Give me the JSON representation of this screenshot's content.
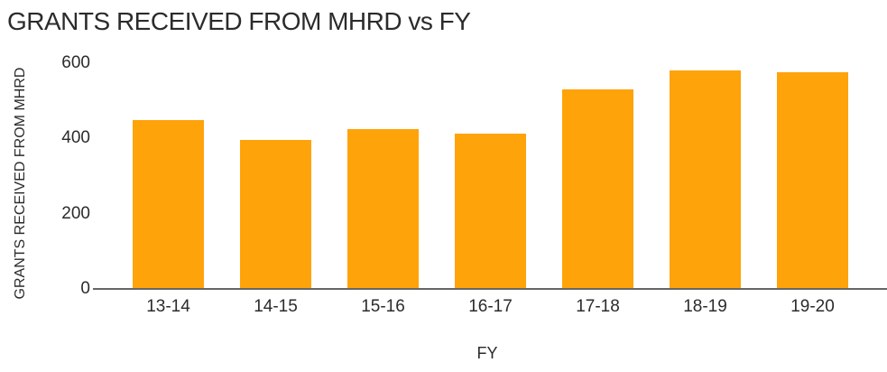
{
  "chart_data": {
    "type": "bar",
    "title": "GRANTS RECEIVED FROM MHRD vs FY",
    "xlabel": "FY",
    "ylabel": "GRANTS RECEIVED FROM MHRD",
    "categories": [
      "13-14",
      "14-15",
      "15-16",
      "16-17",
      "17-18",
      "18-19",
      "19-20"
    ],
    "values": [
      450,
      395,
      425,
      412,
      530,
      580,
      576
    ],
    "yticks": [
      600,
      400,
      200,
      0
    ],
    "ylim": [
      0,
      600
    ],
    "grid": "off",
    "legend": "none",
    "bar_color": "#FFA30A",
    "axis_line_color": "#666666",
    "text_color": "#2b2b2b"
  }
}
